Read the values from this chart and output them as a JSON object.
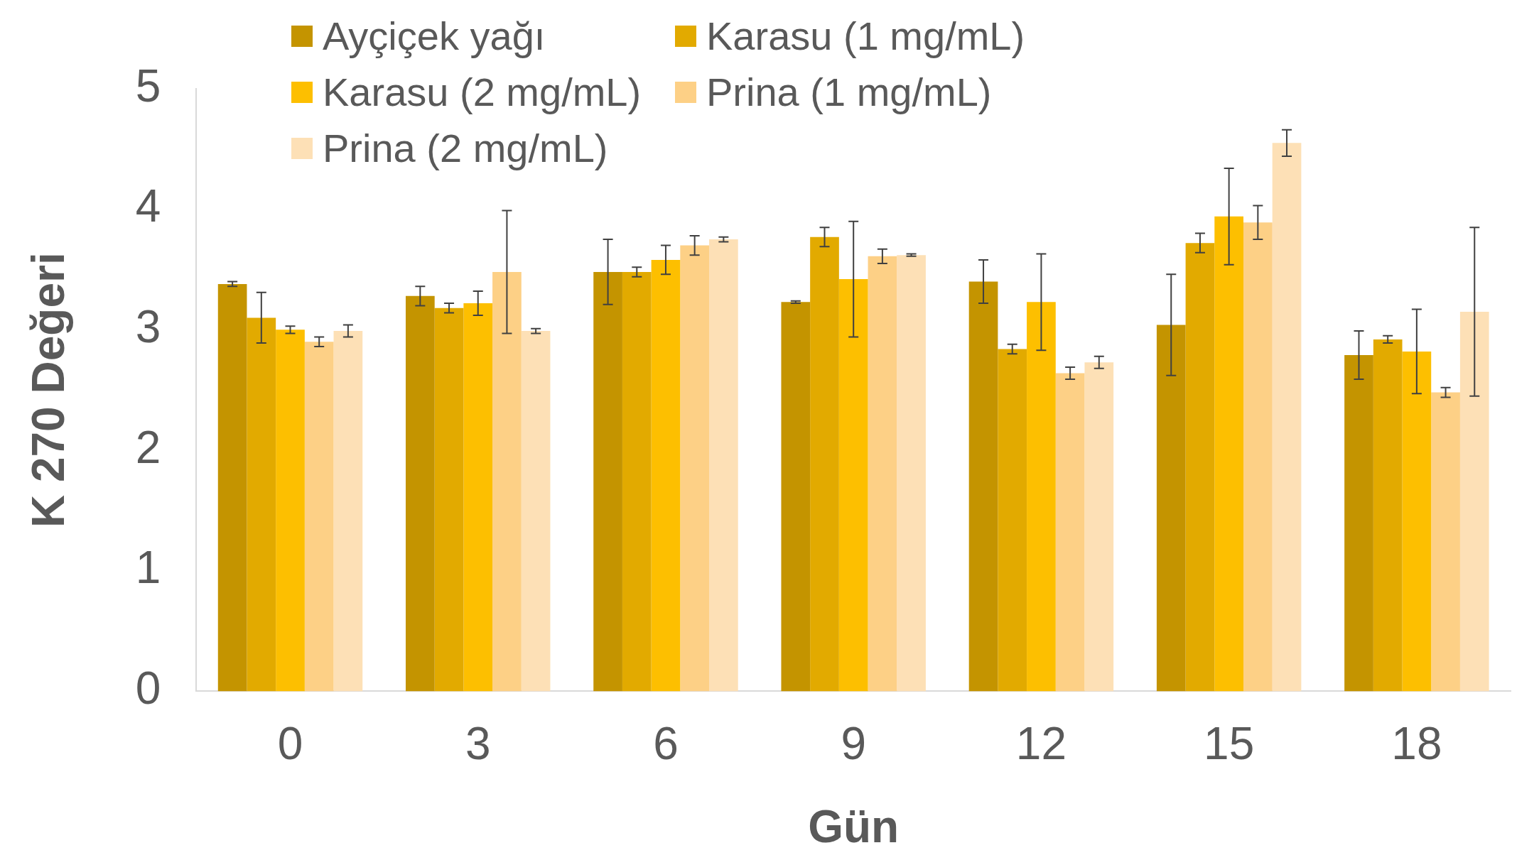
{
  "chart_data": {
    "type": "bar",
    "xlabel": "Gün",
    "ylabel": "K 270 Değeri",
    "categories": [
      "0",
      "3",
      "6",
      "9",
      "12",
      "15",
      "18"
    ],
    "series": [
      {
        "name": "Ayçiçek yağı",
        "color": "#c49400",
        "values": [
          3.38,
          3.28,
          3.48,
          3.23,
          3.4,
          3.04,
          2.79
        ],
        "errors": [
          0.02,
          0.08,
          0.27,
          0.01,
          0.18,
          0.42,
          0.2
        ]
      },
      {
        "name": "Karasu (1 mg/mL)",
        "color": "#e2aa00",
        "values": [
          3.1,
          3.18,
          3.48,
          3.77,
          2.84,
          3.72,
          2.92
        ],
        "errors": [
          0.21,
          0.04,
          0.04,
          0.08,
          0.04,
          0.08,
          0.03
        ]
      },
      {
        "name": "Karasu (2 mg/mL)",
        "color": "#fdbf00",
        "values": [
          3.0,
          3.22,
          3.58,
          3.42,
          3.23,
          3.94,
          2.82
        ],
        "errors": [
          0.03,
          0.1,
          0.12,
          0.48,
          0.4,
          0.4,
          0.35
        ]
      },
      {
        "name": "Prina (1 mg/mL)",
        "color": "#fdd086",
        "values": [
          2.9,
          3.48,
          3.7,
          3.61,
          2.64,
          3.89,
          2.48
        ],
        "errors": [
          0.04,
          0.51,
          0.08,
          0.06,
          0.05,
          0.14,
          0.04
        ]
      },
      {
        "name": "Prina (2 mg/mL)",
        "color": "#fde0b6",
        "values": [
          2.99,
          2.99,
          3.75,
          3.62,
          2.73,
          4.55,
          3.15
        ],
        "errors": [
          0.05,
          0.02,
          0.02,
          0.01,
          0.05,
          0.11,
          0.7
        ]
      }
    ],
    "ylim": [
      0,
      5
    ],
    "yticks": [
      0,
      1,
      2,
      3,
      4,
      5
    ],
    "grid": false,
    "legend": "top left"
  }
}
